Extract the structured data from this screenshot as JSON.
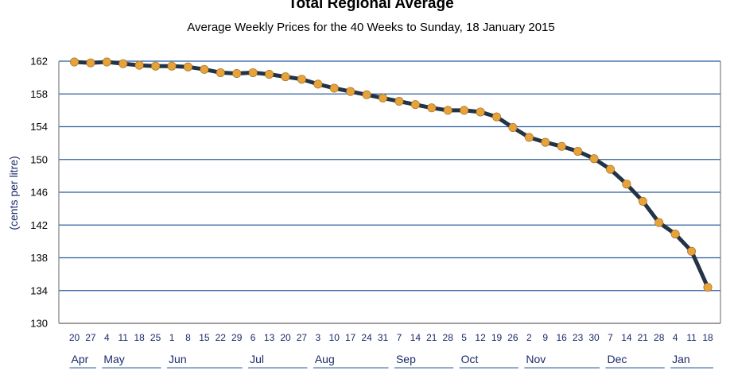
{
  "chart_data": {
    "type": "line",
    "title": "Total Regional Average",
    "subtitle": "Average Weekly Prices for the 40 Weeks to Sunday, 18 January 2015",
    "xlabel": "",
    "ylabel": "(cents per litre)",
    "ylim": [
      130,
      162
    ],
    "yticks": [
      "130",
      "134",
      "138",
      "142",
      "146",
      "150",
      "154",
      "158",
      "162"
    ],
    "grid": true,
    "x": [
      "20",
      "27",
      "4",
      "11",
      "18",
      "25",
      "1",
      "8",
      "15",
      "22",
      "29",
      "6",
      "13",
      "20",
      "27",
      "3",
      "10",
      "17",
      "24",
      "31",
      "7",
      "14",
      "21",
      "28",
      "5",
      "12",
      "19",
      "26",
      "2",
      "9",
      "16",
      "23",
      "30",
      "7",
      "14",
      "21",
      "28",
      "4",
      "11",
      "18"
    ],
    "months": [
      {
        "label": "Apr",
        "start": 0,
        "end": 1
      },
      {
        "label": "May",
        "start": 2,
        "end": 5
      },
      {
        "label": "Jun",
        "start": 6,
        "end": 10
      },
      {
        "label": "Jul",
        "start": 11,
        "end": 14
      },
      {
        "label": "Aug",
        "start": 15,
        "end": 19
      },
      {
        "label": "Sep",
        "start": 20,
        "end": 23
      },
      {
        "label": "Oct",
        "start": 24,
        "end": 27
      },
      {
        "label": "Nov",
        "start": 28,
        "end": 32
      },
      {
        "label": "Dec",
        "start": 33,
        "end": 36
      },
      {
        "label": "Jan",
        "start": 37,
        "end": 39
      }
    ],
    "series": [
      {
        "values": [
          161.9,
          161.8,
          161.9,
          161.7,
          161.5,
          161.4,
          161.4,
          161.3,
          161.0,
          160.6,
          160.5,
          160.6,
          160.4,
          160.1,
          159.8,
          159.2,
          158.7,
          158.3,
          157.9,
          157.5,
          157.1,
          156.7,
          156.3,
          156.0,
          156.0,
          155.8,
          155.2,
          153.9,
          152.7,
          152.1,
          151.6,
          151.0,
          150.1,
          148.8,
          147.0,
          144.9,
          142.3,
          140.9,
          138.8,
          134.4
        ]
      }
    ],
    "colors": {
      "line": "#243447",
      "marker": "#e8a23a",
      "grid": "#2b5c9e",
      "axis": "#7f7f7f",
      "month_underline": "#2b5c9e"
    }
  }
}
